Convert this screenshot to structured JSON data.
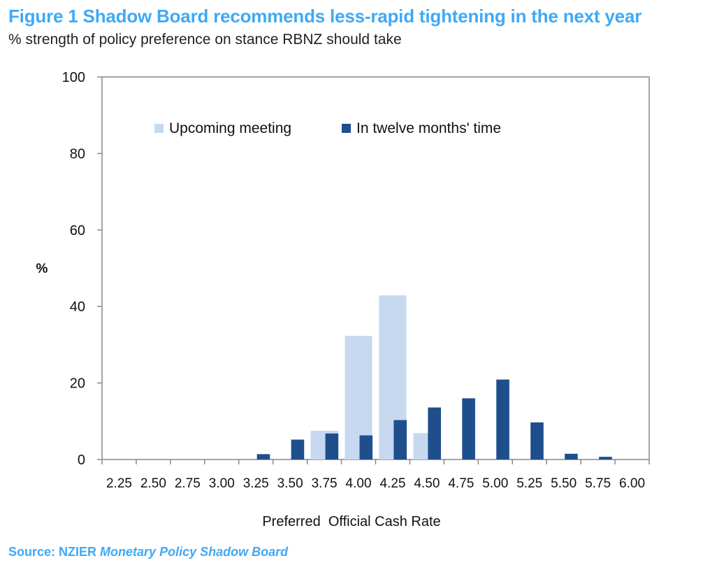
{
  "figure": {
    "title": "Figure 1 Shadow Board recommends less-rapid tightening in the next year",
    "subtitle": "% strength of policy preference on stance RBNZ should take",
    "source_prefix": "Source: NZIER",
    "source_publication": "Monetary Policy Shadow Board"
  },
  "colors": {
    "title": "#3fa9f5",
    "upcoming": "#c6d9f1",
    "twelve_months": "#1f4e8c",
    "axis": "#888888"
  },
  "chart_data": {
    "type": "bar",
    "categories": [
      "2.25",
      "2.50",
      "2.75",
      "3.00",
      "3.25",
      "3.50",
      "3.75",
      "4.00",
      "4.25",
      "4.50",
      "4.75",
      "5.00",
      "5.25",
      "5.50",
      "5.75",
      "6.00"
    ],
    "series": [
      {
        "name": "Upcoming meeting",
        "values": [
          0,
          0,
          0,
          0,
          0,
          0,
          7.5,
          32.3,
          42.9,
          6.9,
          0,
          0,
          0,
          0,
          0,
          0
        ]
      },
      {
        "name": "In twelve months' time",
        "values": [
          0,
          0,
          0,
          0,
          1.4,
          5.2,
          6.8,
          6.3,
          10.3,
          13.6,
          16.0,
          20.9,
          9.7,
          1.5,
          0.7,
          0
        ]
      }
    ],
    "xlabel": "Preferred  Official Cash Rate",
    "ylabel": "%",
    "ylim": [
      0,
      100
    ],
    "yticks": [
      0,
      20,
      40,
      60,
      80,
      100
    ],
    "grid": false,
    "legend_position": "top-center"
  }
}
